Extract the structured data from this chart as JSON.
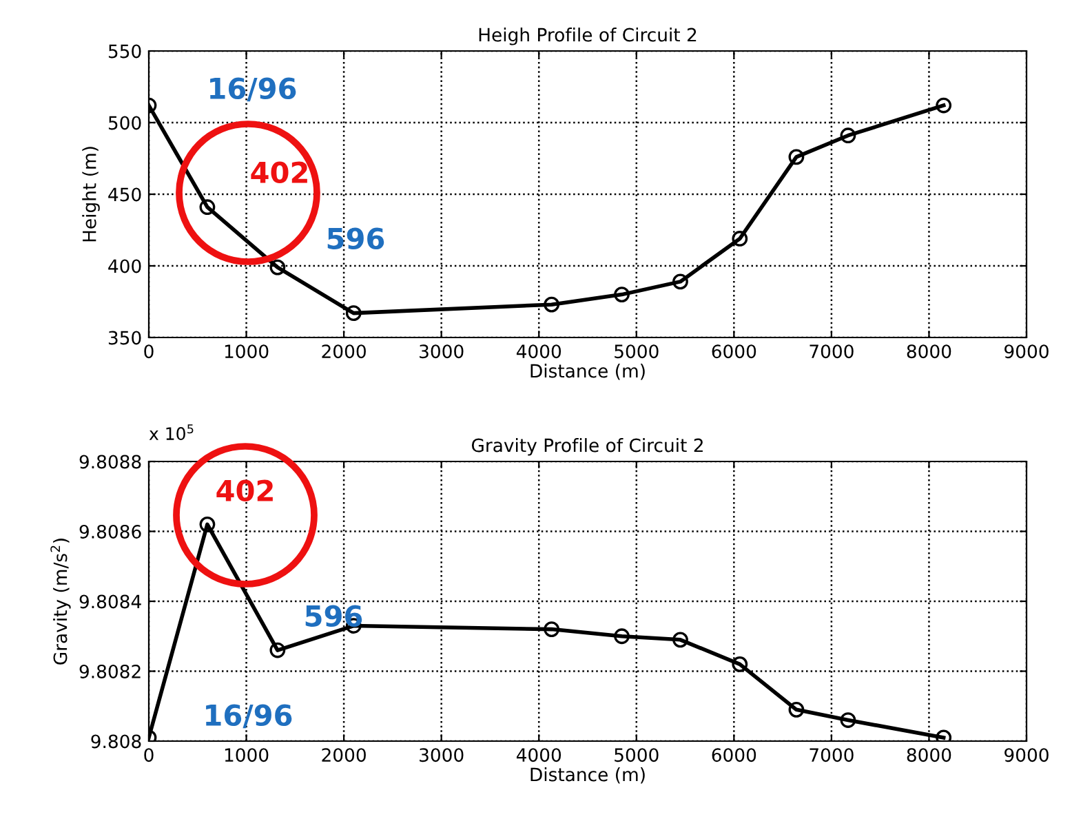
{
  "chart_data": [
    {
      "type": "line",
      "title": "Heigh Profile of Circuit 2",
      "xlabel": "Distance (m)",
      "ylabel": "Height (m)",
      "x": [
        0,
        600,
        1320,
        2100,
        4130,
        4850,
        5450,
        6060,
        6640,
        7170,
        8150
      ],
      "series": [
        {
          "color": "#000000",
          "values": [
            512,
            441,
            399,
            367,
            373,
            380,
            389,
            419,
            476,
            491,
            512
          ]
        }
      ],
      "xlim": [
        0,
        9000
      ],
      "xticks": [
        0,
        1000,
        2000,
        3000,
        4000,
        5000,
        6000,
        7000,
        8000,
        9000
      ],
      "ylim": [
        350,
        550
      ],
      "yticks": [
        350,
        400,
        450,
        500,
        550
      ],
      "grid": true,
      "marker": "circle",
      "line_style": "solid",
      "annotations": [
        "16/96",
        "402",
        "596"
      ]
    },
    {
      "type": "line",
      "title": "Gravity Profile of Circuit 2",
      "xlabel": "Distance (m)",
      "ylabel": "Gravity (m/s$^{2}$)",
      "x": [
        0,
        600,
        1320,
        2100,
        4130,
        4850,
        5450,
        6060,
        6640,
        7170,
        8150
      ],
      "series": [
        {
          "color": "#000000",
          "values": [
            9.80801,
            9.80862,
            9.80826,
            9.80833,
            9.80832,
            9.8083,
            9.80829,
            9.80822,
            9.80809,
            9.80806,
            9.80801
          ]
        }
      ],
      "xlim": [
        0,
        9000
      ],
      "xticks": [
        0,
        1000,
        2000,
        3000,
        4000,
        5000,
        6000,
        7000,
        8000,
        9000
      ],
      "ylim": [
        9.808,
        9.8088
      ],
      "yticks": [
        9.808,
        9.8082,
        9.8084,
        9.8086,
        9.8088
      ],
      "grid": true,
      "marker": "circle",
      "line_style": "solid",
      "annotations": [
        "x 10$^{5}$",
        "402",
        "596",
        "16/96"
      ]
    }
  ]
}
